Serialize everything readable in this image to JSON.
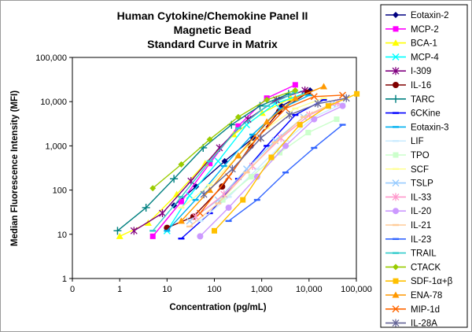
{
  "chart_data": {
    "type": "scatter",
    "title": [
      "Human Cytokine/Chemokine Panel II",
      "Magnetic Bead",
      "Standard Curve in Matrix"
    ],
    "xlabel": "Concentration (pg/mL)",
    "ylabel": "Median Fluorescence Intensity (MFI)",
    "x_scale": "log",
    "y_scale": "log",
    "xlim": [
      0.1,
      100000
    ],
    "ylim": [
      1,
      100000
    ],
    "x_ticks": [
      "0",
      "1",
      "10",
      "100",
      "1,000",
      "10,000",
      "100,000"
    ],
    "y_ticks": [
      "1",
      "10",
      "100",
      "1,000",
      "10,000",
      "100,000"
    ],
    "grid": false,
    "legend_position": "right",
    "series": [
      {
        "name": "Eotaxin-2",
        "color": "#000080",
        "marker": "diamond",
        "x": [
          14,
          41,
          165,
          658,
          2634,
          10536
        ],
        "y": [
          45,
          120,
          450,
          1500,
          8000,
          18000
        ]
      },
      {
        "name": "MCP-2",
        "color": "#ff00ff",
        "marker": "square",
        "x": [
          5,
          20,
          80,
          320,
          1280,
          5120
        ],
        "y": [
          9,
          55,
          400,
          2800,
          12000,
          24000
        ]
      },
      {
        "name": "BCA-1",
        "color": "#ffff00",
        "marker": "triangle",
        "x": [
          1,
          4,
          16,
          64,
          256,
          1024,
          4096
        ],
        "y": [
          9,
          18,
          80,
          400,
          1800,
          5500,
          12000
        ]
      },
      {
        "name": "MCP-4",
        "color": "#00ffff",
        "marker": "x",
        "x": [
          10,
          30,
          120,
          480,
          1920,
          7680
        ],
        "y": [
          12,
          75,
          450,
          3000,
          9000,
          15000
        ]
      },
      {
        "name": "I-309",
        "color": "#800080",
        "marker": "star",
        "x": [
          2,
          8,
          32,
          128,
          512,
          2048,
          8192
        ],
        "y": [
          12,
          30,
          160,
          900,
          4000,
          11000,
          18000
        ]
      },
      {
        "name": "IL-16",
        "color": "#800000",
        "marker": "circle",
        "x": [
          10,
          36,
          146,
          585,
          2340,
          9360
        ],
        "y": [
          14,
          25,
          120,
          1000,
          6000,
          16000
        ]
      },
      {
        "name": "TARC",
        "color": "#008080",
        "marker": "plus",
        "x": [
          0.9,
          3.6,
          14,
          58,
          230,
          920,
          3700
        ],
        "y": [
          12,
          40,
          180,
          900,
          3000,
          8000,
          15000
        ]
      },
      {
        "name": "6CKine",
        "color": "#0000ff",
        "marker": "dash",
        "x": [
          20,
          80,
          320,
          1280,
          5120,
          20480
        ],
        "y": [
          8,
          30,
          180,
          1000,
          5000,
          11000
        ]
      },
      {
        "name": "Eotaxin-3",
        "color": "#00b0f0",
        "marker": "dash",
        "x": [
          10,
          40,
          160,
          640,
          2560,
          10240
        ],
        "y": [
          12,
          60,
          350,
          1800,
          7000,
          14000
        ]
      },
      {
        "name": "LIF",
        "color": "#ccecff",
        "marker": "dash",
        "x": [
          50,
          200,
          800,
          3200,
          12800,
          51200
        ],
        "y": [
          20,
          70,
          300,
          1300,
          4500,
          9000
        ]
      },
      {
        "name": "TPO",
        "color": "#ccffcc",
        "marker": "square",
        "x": [
          150,
          600,
          2400,
          9600,
          38400
        ],
        "y": [
          60,
          200,
          700,
          2000,
          4000
        ]
      },
      {
        "name": "SCF",
        "color": "#ffff99",
        "marker": "dash",
        "x": [
          20,
          80,
          320,
          1280,
          5120,
          20480
        ],
        "y": [
          40,
          130,
          600,
          2500,
          7000,
          12000
        ]
      },
      {
        "name": "TSLP",
        "color": "#99ccff",
        "marker": "x",
        "x": [
          30,
          120,
          480,
          1920,
          7680,
          30720
        ],
        "y": [
          20,
          60,
          300,
          1300,
          4500,
          9000
        ]
      },
      {
        "name": "IL-33",
        "color": "#ff99cc",
        "marker": "star",
        "x": [
          40,
          160,
          640,
          2560,
          10240,
          40960
        ],
        "y": [
          25,
          80,
          350,
          1500,
          5000,
          9500
        ]
      },
      {
        "name": "IL-20",
        "color": "#cc99ff",
        "marker": "circle",
        "x": [
          50,
          200,
          800,
          3200,
          12800,
          51200
        ],
        "y": [
          9,
          40,
          200,
          1000,
          4000,
          8000
        ]
      },
      {
        "name": "IL-21",
        "color": "#ffcc99",
        "marker": "dash",
        "x": [
          30,
          120,
          480,
          1920,
          7680,
          30720
        ],
        "y": [
          15,
          50,
          250,
          1200,
          4500,
          9000
        ]
      },
      {
        "name": "IL-23",
        "color": "#3366ff",
        "marker": "dash",
        "x": [
          200,
          800,
          3200,
          12800,
          51200
        ],
        "y": [
          20,
          60,
          250,
          900,
          3000
        ]
      },
      {
        "name": "TRAIL",
        "color": "#33cccc",
        "marker": "dash",
        "x": [
          5,
          20,
          80,
          320,
          1280,
          5120
        ],
        "y": [
          12,
          70,
          450,
          2500,
          8000,
          16000
        ]
      },
      {
        "name": "CTACK",
        "color": "#99cc00",
        "marker": "diamond",
        "x": [
          5,
          20,
          80,
          320,
          1280,
          5120
        ],
        "y": [
          110,
          380,
          1400,
          4500,
          11000,
          18000
        ]
      },
      {
        "name": "SDF-1α+β",
        "color": "#ffc000",
        "marker": "square",
        "x": [
          100,
          400,
          1600,
          6400,
          25600,
          102400
        ],
        "y": [
          12,
          60,
          550,
          3000,
          8000,
          15000
        ]
      },
      {
        "name": "ENA-78",
        "color": "#ff9900",
        "marker": "triangle",
        "x": [
          20,
          80,
          320,
          1280,
          5120,
          20480
        ],
        "y": [
          20,
          100,
          600,
          3500,
          12000,
          22000
        ]
      },
      {
        "name": "MIP-1d",
        "color": "#ff6600",
        "marker": "x",
        "x": [
          50,
          200,
          800,
          3200,
          12800,
          51200
        ],
        "y": [
          30,
          200,
          1500,
          7000,
          13000,
          14000
        ]
      },
      {
        "name": "IL-28A",
        "color": "#666699",
        "marker": "star",
        "x": [
          60,
          240,
          960,
          3840,
          15360,
          61440
        ],
        "y": [
          80,
          300,
          1500,
          5000,
          9000,
          12000
        ]
      }
    ]
  }
}
